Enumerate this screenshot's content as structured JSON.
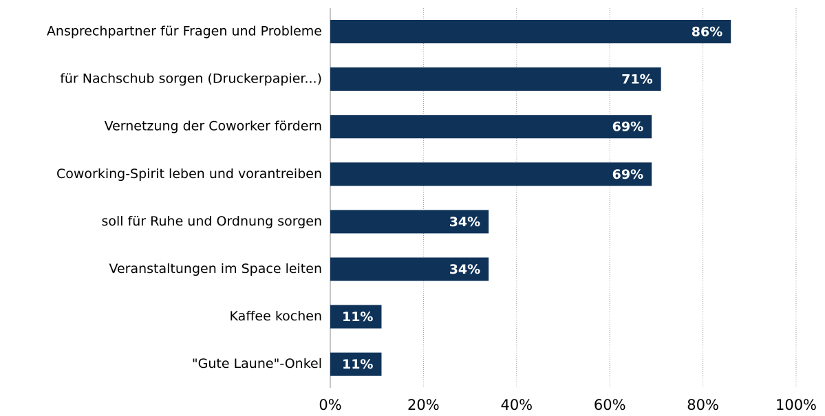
{
  "chart_data": {
    "type": "bar",
    "orientation": "horizontal",
    "categories": [
      "Ansprechpartner für Fragen und Probleme",
      "für Nachschub sorgen (Druckerpapier...)",
      "Vernetzung der Coworker fördern",
      "Coworking-Spirit leben und vorantreiben",
      "soll für Ruhe und Ordnung sorgen",
      "Veranstaltungen im Space leiten",
      "Kaffee kochen",
      "\"Gute Laune\"-Onkel"
    ],
    "values": [
      86,
      71,
      69,
      69,
      34,
      34,
      11,
      11
    ],
    "value_labels": [
      "86%",
      "71%",
      "69%",
      "69%",
      "34%",
      "34%",
      "11%",
      "11%"
    ],
    "color": "#0f3358",
    "xlim": [
      0,
      100
    ],
    "xticks": [
      {
        "value": 0,
        "label": "0%"
      },
      {
        "value": 20,
        "label": "20%"
      },
      {
        "value": 40,
        "label": "40%"
      },
      {
        "value": 60,
        "label": "60%"
      },
      {
        "value": 80,
        "label": "80%"
      },
      {
        "value": 100,
        "label": "100%"
      }
    ],
    "grid": true
  }
}
